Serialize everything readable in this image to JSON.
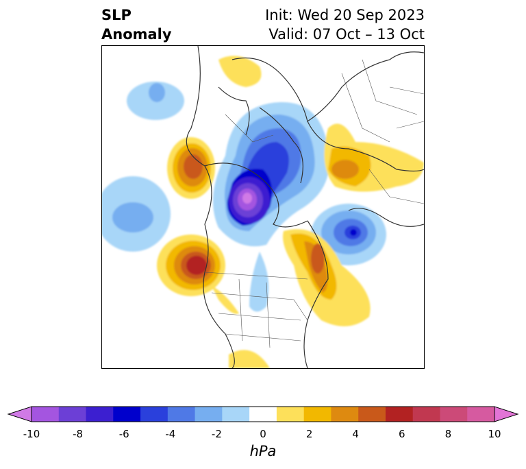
{
  "title": {
    "left_line1": "SLP",
    "left_line2": "Anomaly",
    "right_line1": "Init: Wed 20 Sep 2023",
    "right_line2": "Valid: 07 Oct – 13 Oct"
  },
  "colorbar": {
    "label": "hPa",
    "ticks": [
      "-10",
      "-8",
      "-6",
      "-4",
      "-2",
      "0",
      "2",
      "4",
      "6",
      "8",
      "10"
    ],
    "colors": [
      "#d07ae6",
      "#a455e0",
      "#6c3fd6",
      "#3c1fd0",
      "#0000cc",
      "#2a40dc",
      "#4f79e6",
      "#76aef0",
      "#a8d6f8",
      "#ffffff",
      "#fde05a",
      "#f2b800",
      "#de8a10",
      "#c9591a",
      "#b22222",
      "#c13850",
      "#cc4a78",
      "#d65aa0",
      "#e274d6"
    ],
    "extend": "both"
  },
  "map": {
    "projection": "north-polar stereographic",
    "region": "Northern Hemisphere"
  }
}
